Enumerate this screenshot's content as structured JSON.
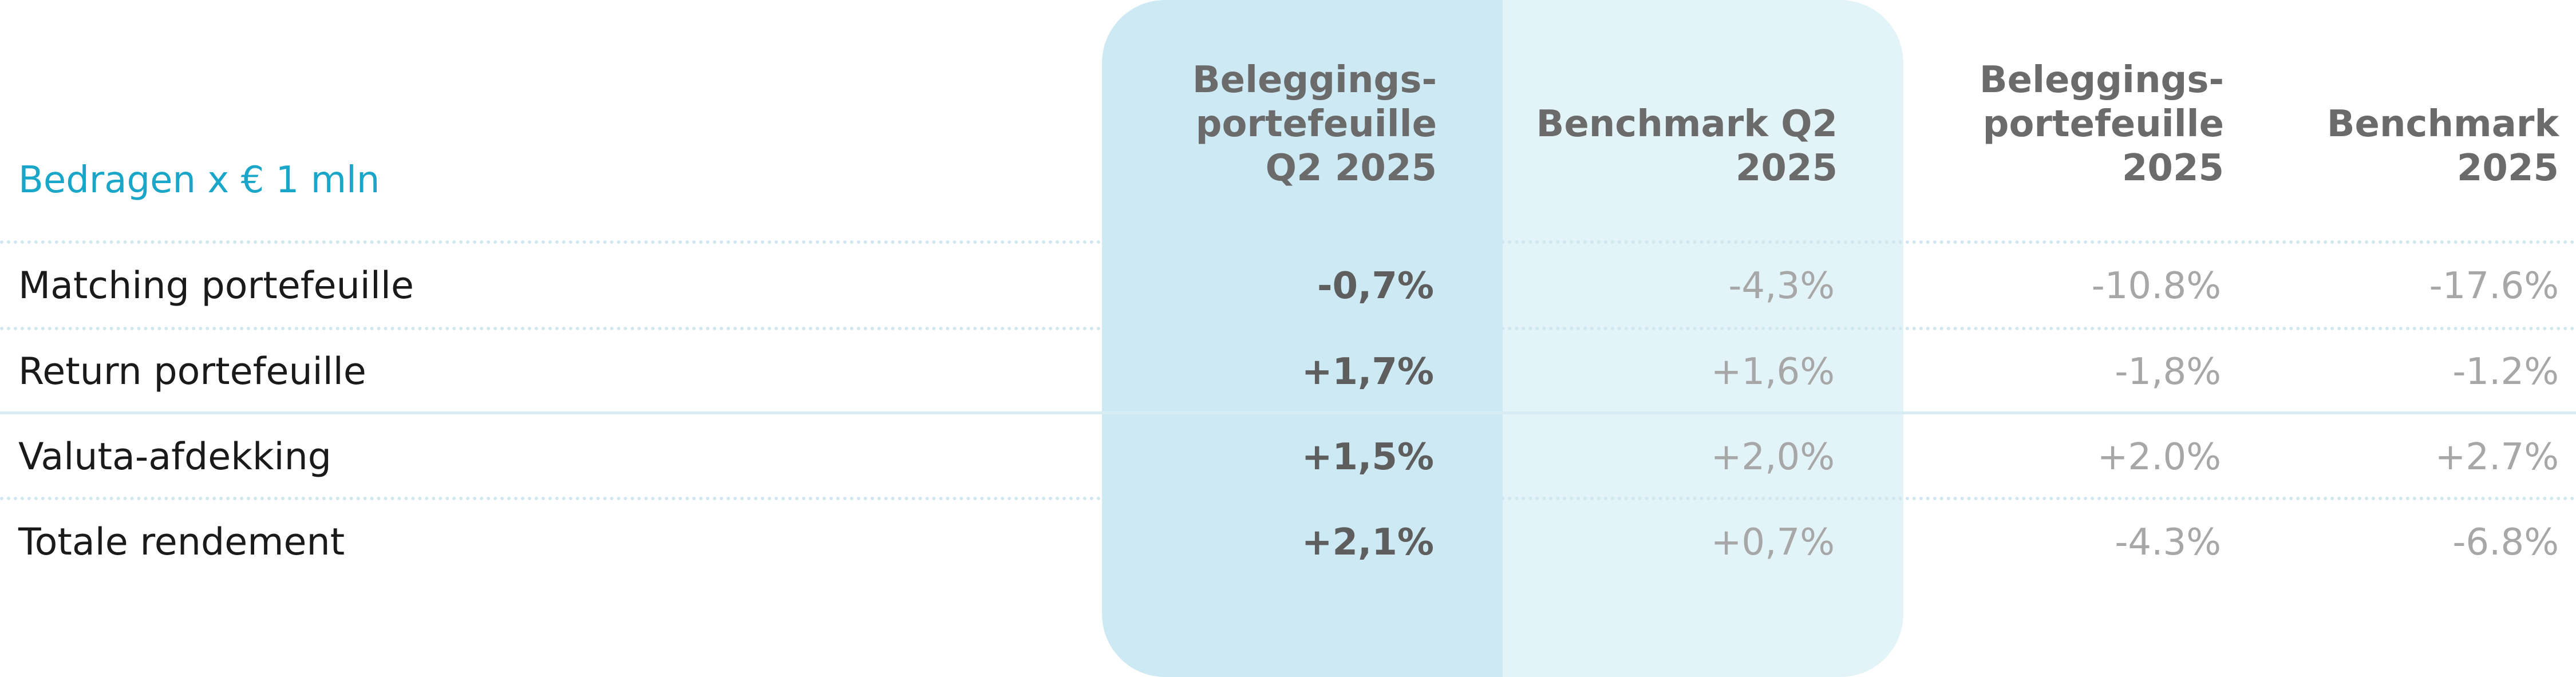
{
  "caption": "Bedragen x € 1 mln",
  "columns": [
    "Beleggings-\nportefeuille\nQ2 2025",
    "Benchmark Q2\n2025",
    "Beleggings-\nportefeuille\n2025",
    "Benchmark\n2025"
  ],
  "rows": [
    {
      "label": "Matching portefeuille",
      "values": [
        "-0,7%",
        "-4,3%",
        "-10.8%",
        "-17.6%"
      ]
    },
    {
      "label": "Return portefeuille",
      "values": [
        "+1,7%",
        "+1,6%",
        "-1,8%",
        "-1.2%"
      ]
    },
    {
      "label": "Valuta-afdekking",
      "values": [
        "+1,5%",
        "+2,0%",
        "+2.0%",
        "+2.7%"
      ]
    },
    {
      "label": "Totale rendement",
      "values": [
        "+2,1%",
        "+0,7%",
        "-4.3%",
        "-6.8%"
      ]
    }
  ],
  "colors": {
    "caption": "#1aa6c8",
    "highlight_primary": "#cdeaf4",
    "highlight_secondary": "#e3f4f9"
  }
}
